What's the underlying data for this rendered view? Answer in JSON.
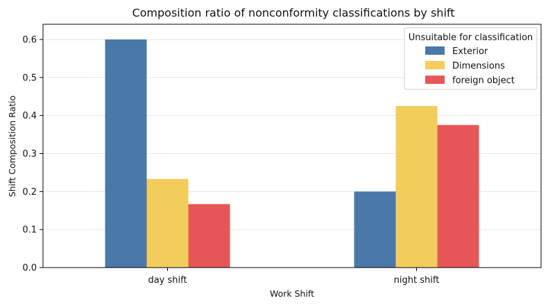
{
  "chart_data": {
    "type": "bar",
    "title": "Composition ratio of nonconformity classifications by shift",
    "xlabel": "Work Shift",
    "ylabel": "Shift Composition Ratio",
    "categories": [
      "day shift",
      "night shift"
    ],
    "series": [
      {
        "name": "Exterior",
        "color": "#4a78a8",
        "values": [
          0.6,
          0.2
        ]
      },
      {
        "name": "Dimensions",
        "color": "#f2cd5c",
        "values": [
          0.233,
          0.425
        ]
      },
      {
        "name": "foreign object",
        "color": "#e55757",
        "values": [
          0.167,
          0.375
        ]
      }
    ],
    "ylim": [
      0,
      0.64
    ],
    "yticks": [
      "0.0",
      "0.1",
      "0.2",
      "0.3",
      "0.4",
      "0.5",
      "0.6"
    ],
    "grid": true,
    "legend": {
      "title": "Unsuitable for classification",
      "placement": "top-right"
    }
  }
}
